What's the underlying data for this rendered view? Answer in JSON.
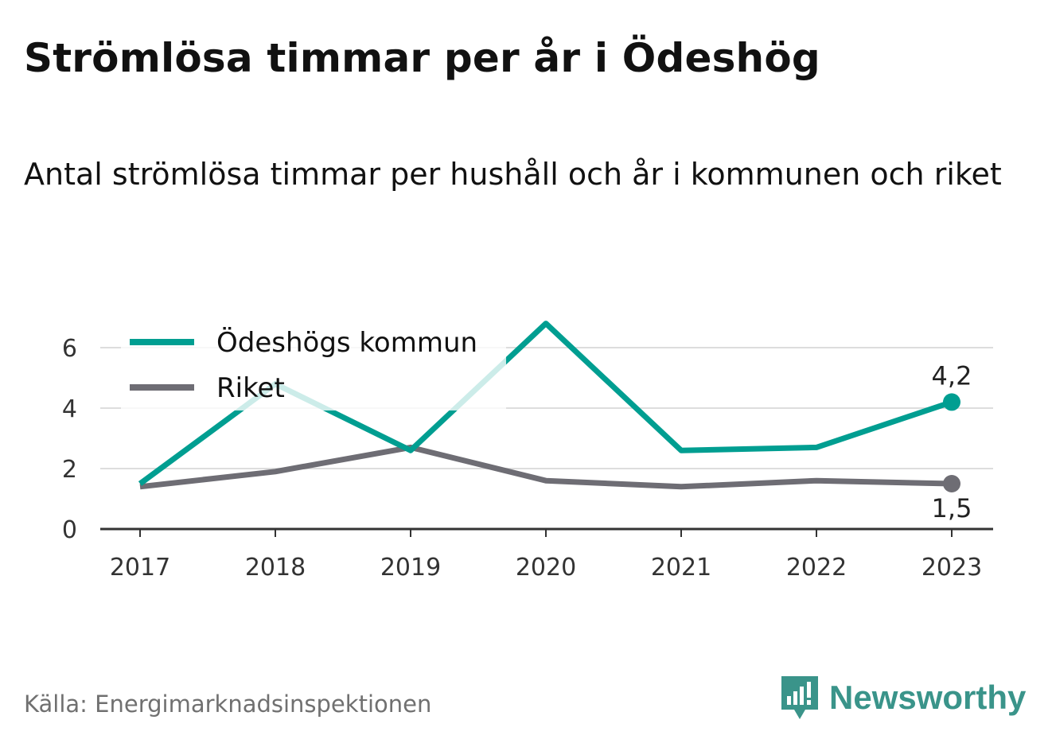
{
  "title": "Strömlösa timmar per år i Ödeshög",
  "subtitle": "Antal strömlösa timmar per hushåll och år i kommunen och riket",
  "source": "Källa: Energimarknadsinspektionen",
  "brand": {
    "name": "Newsworthy",
    "icon": "newsworthy-logo-icon",
    "color": "#3a948a"
  },
  "chart_data": {
    "type": "line",
    "x": [
      "2017",
      "2018",
      "2019",
      "2020",
      "2021",
      "2022",
      "2023"
    ],
    "ylim": [
      0,
      7
    ],
    "yticks": [
      "0",
      "2",
      "4",
      "6"
    ],
    "grid": true,
    "legend_position": "top-left",
    "series": [
      {
        "name": "Ödeshögs kommun",
        "color": "#009e91",
        "values": [
          1.5,
          4.8,
          2.6,
          6.8,
          2.6,
          2.7,
          4.2
        ],
        "end_label": "4,2"
      },
      {
        "name": "Riket",
        "color": "#6e6d74",
        "values": [
          1.4,
          1.9,
          2.7,
          1.6,
          1.4,
          1.6,
          1.5
        ],
        "end_label": "1,5"
      }
    ]
  }
}
